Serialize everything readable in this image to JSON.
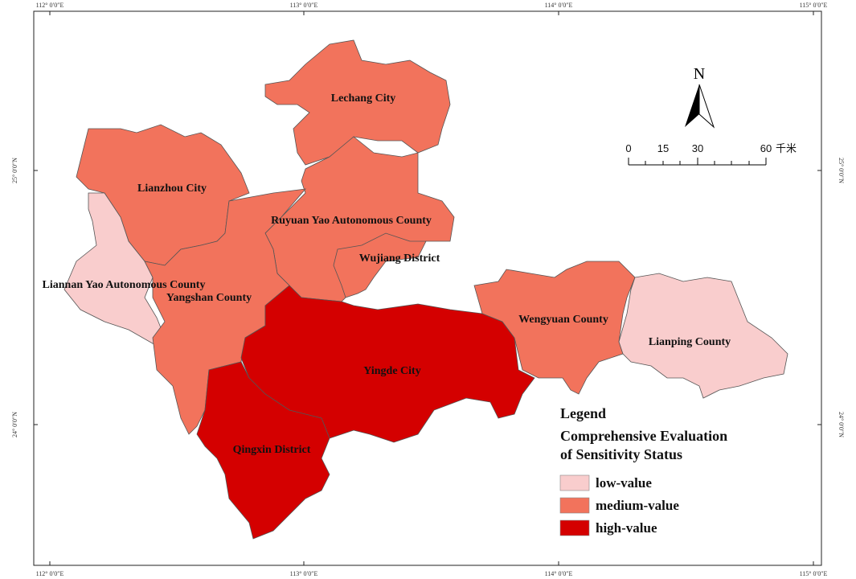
{
  "graticule": {
    "top": [
      "112° 0′0″E",
      "113° 0′0″E",
      "114° 0′0″E",
      "115° 0′0″E"
    ],
    "bottom": [
      "112° 0′0″E",
      "113° 0′0″E",
      "114° 0′0″E",
      "115° 0′0″E"
    ],
    "left": [
      "25° 0′0″N",
      "24° 0′0″N"
    ],
    "right": [
      "25° 0′0″N",
      "24° 0′0″N"
    ]
  },
  "north_arrow": "N",
  "scale_bar": {
    "labels": [
      "0",
      "15",
      "30",
      "60"
    ],
    "unit": "千米"
  },
  "regions": [
    {
      "label": "Lechang City",
      "level": "medium-value"
    },
    {
      "label": "Ruyuan Yao Autonomous County",
      "level": "medium-value"
    },
    {
      "label": "Wujiang District",
      "level": "medium-value"
    },
    {
      "label": "Lianzhou City",
      "level": "medium-value"
    },
    {
      "label": "Liannan Yao Autonomous County",
      "level": "low-value"
    },
    {
      "label": "Yangshan County",
      "level": "medium-value"
    },
    {
      "label": "Yingde City",
      "level": "high-value"
    },
    {
      "label": "Qingxin District",
      "level": "high-value"
    },
    {
      "label": "Wengyuan County",
      "level": "medium-value"
    },
    {
      "label": "Lianping County",
      "level": "low-value"
    }
  ],
  "legend": {
    "title": "Legend",
    "subtitle_lines": [
      "Comprehensive Evaluation",
      "of Sensitivity Status"
    ],
    "items": [
      {
        "label": "low-value",
        "color": "#f9cdcd"
      },
      {
        "label": "medium-value",
        "color": "#f2735c"
      },
      {
        "label": "high-value",
        "color": "#d40000"
      }
    ]
  }
}
